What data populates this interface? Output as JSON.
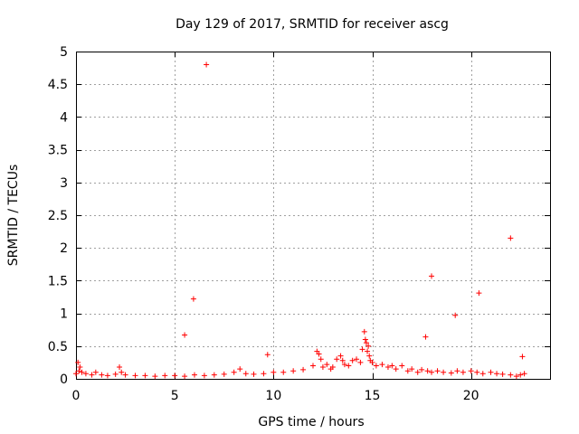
{
  "chart_data": {
    "type": "scatter",
    "title": "Day 129 of 2017, SRMTID for receiver ascg",
    "xlabel": "GPS time / hours",
    "ylabel": "SRMTID / TECUs",
    "xlim": [
      0,
      24
    ],
    "ylim": [
      0,
      5
    ],
    "xticks": [
      0,
      5,
      10,
      15,
      20
    ],
    "yticks": [
      0,
      0.5,
      1,
      1.5,
      2,
      2.5,
      3,
      3.5,
      4,
      4.5,
      5
    ],
    "ytick_labels": [
      "0",
      "0.5",
      "1",
      "1.5",
      "2",
      "2.5",
      "3",
      "3.5",
      "4",
      "4.5",
      "5"
    ],
    "grid": true,
    "marker": "+",
    "color": "#ff0000",
    "series": [
      {
        "name": "SRMTID",
        "x": [
          0.0,
          0.1,
          0.15,
          0.2,
          0.3,
          0.5,
          0.8,
          1.0,
          1.3,
          1.6,
          2.0,
          2.2,
          2.3,
          2.5,
          3.0,
          3.5,
          4.0,
          4.5,
          5.0,
          5.5,
          6.0,
          6.5,
          7.0,
          7.5,
          8.0,
          8.3,
          8.6,
          9.0,
          9.5,
          10.0,
          10.5,
          11.0,
          11.5,
          12.0,
          12.2,
          12.3,
          12.4,
          12.5,
          12.7,
          12.9,
          13.0,
          13.2,
          13.4,
          13.5,
          13.6,
          13.8,
          14.0,
          14.2,
          14.4,
          14.5,
          14.6,
          14.65,
          14.7,
          14.75,
          14.8,
          14.85,
          14.9,
          15.0,
          15.2,
          15.5,
          15.8,
          16.0,
          16.2,
          16.5,
          16.8,
          17.0,
          17.3,
          17.5,
          17.8,
          18.0,
          18.3,
          18.6,
          19.0,
          19.3,
          19.6,
          20.0,
          20.3,
          20.6,
          21.0,
          21.3,
          21.6,
          22.0,
          22.3,
          22.5,
          22.7,
          5.5,
          5.95,
          6.6,
          9.7,
          17.7,
          18.0,
          19.2,
          20.4,
          22.0,
          22.6
        ],
        "y": [
          0.08,
          0.25,
          0.12,
          0.18,
          0.1,
          0.08,
          0.06,
          0.1,
          0.06,
          0.05,
          0.07,
          0.18,
          0.1,
          0.06,
          0.05,
          0.05,
          0.04,
          0.05,
          0.05,
          0.04,
          0.06,
          0.05,
          0.06,
          0.07,
          0.1,
          0.15,
          0.08,
          0.07,
          0.08,
          0.1,
          0.1,
          0.12,
          0.14,
          0.2,
          0.42,
          0.38,
          0.3,
          0.18,
          0.22,
          0.15,
          0.18,
          0.3,
          0.35,
          0.28,
          0.22,
          0.2,
          0.28,
          0.3,
          0.25,
          0.45,
          0.72,
          0.6,
          0.55,
          0.42,
          0.5,
          0.35,
          0.28,
          0.25,
          0.2,
          0.22,
          0.18,
          0.2,
          0.15,
          0.2,
          0.12,
          0.15,
          0.1,
          0.14,
          0.12,
          0.1,
          0.12,
          0.1,
          0.09,
          0.12,
          0.1,
          0.12,
          0.1,
          0.08,
          0.1,
          0.08,
          0.07,
          0.06,
          0.04,
          0.06,
          0.08,
          0.67,
          1.22,
          4.8,
          0.37,
          0.64,
          1.57,
          0.97,
          1.31,
          2.15,
          0.34
        ]
      }
    ]
  }
}
